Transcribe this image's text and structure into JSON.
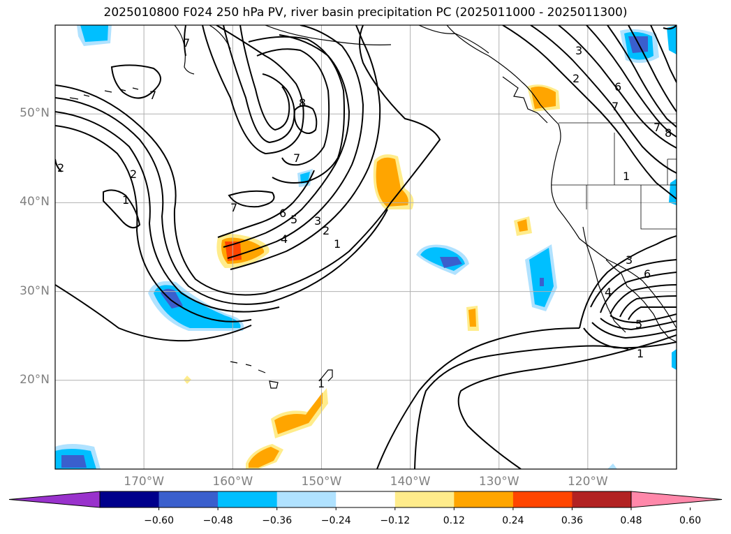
{
  "title": "2025010800 F024 250 hPa PV, river basin precipitation PC (2025011000 - 2025011300)",
  "map": {
    "lon_range": [
      -180,
      -110
    ],
    "lat_range": [
      10,
      60
    ],
    "lat_ticks": [
      {
        "lat": 50,
        "label": "50°N"
      },
      {
        "lat": 40,
        "label": "40°N"
      },
      {
        "lat": 30,
        "label": "30°N"
      },
      {
        "lat": 20,
        "label": "20°N"
      }
    ],
    "lon_ticks": [
      {
        "lon": -170,
        "label": "170°W"
      },
      {
        "lon": -160,
        "label": "160°W"
      },
      {
        "lon": -150,
        "label": "150°W"
      },
      {
        "lon": -140,
        "label": "140°W"
      },
      {
        "lon": -130,
        "label": "130°W"
      },
      {
        "lon": -120,
        "label": "120°W"
      }
    ],
    "pv_contour_labels": [
      "1",
      "2",
      "3",
      "4",
      "5",
      "6",
      "7",
      "8"
    ]
  },
  "colorbar": {
    "colors": [
      "#9932cc",
      "#00008b",
      "#3a5fcd",
      "#00bfff",
      "#b0e2ff",
      "#ffffff",
      "#ffec8b",
      "#ffa500",
      "#ff4500",
      "#b22222",
      "#ff88aa"
    ],
    "ticks": [
      "−0.60",
      "−0.48",
      "−0.36",
      "−0.24",
      "−0.12",
      "0.12",
      "0.24",
      "0.36",
      "0.48",
      "0.60"
    ]
  },
  "colors": {
    "land_outline": "#000000",
    "grid": "#b0b0b0",
    "contour": "#000000"
  }
}
